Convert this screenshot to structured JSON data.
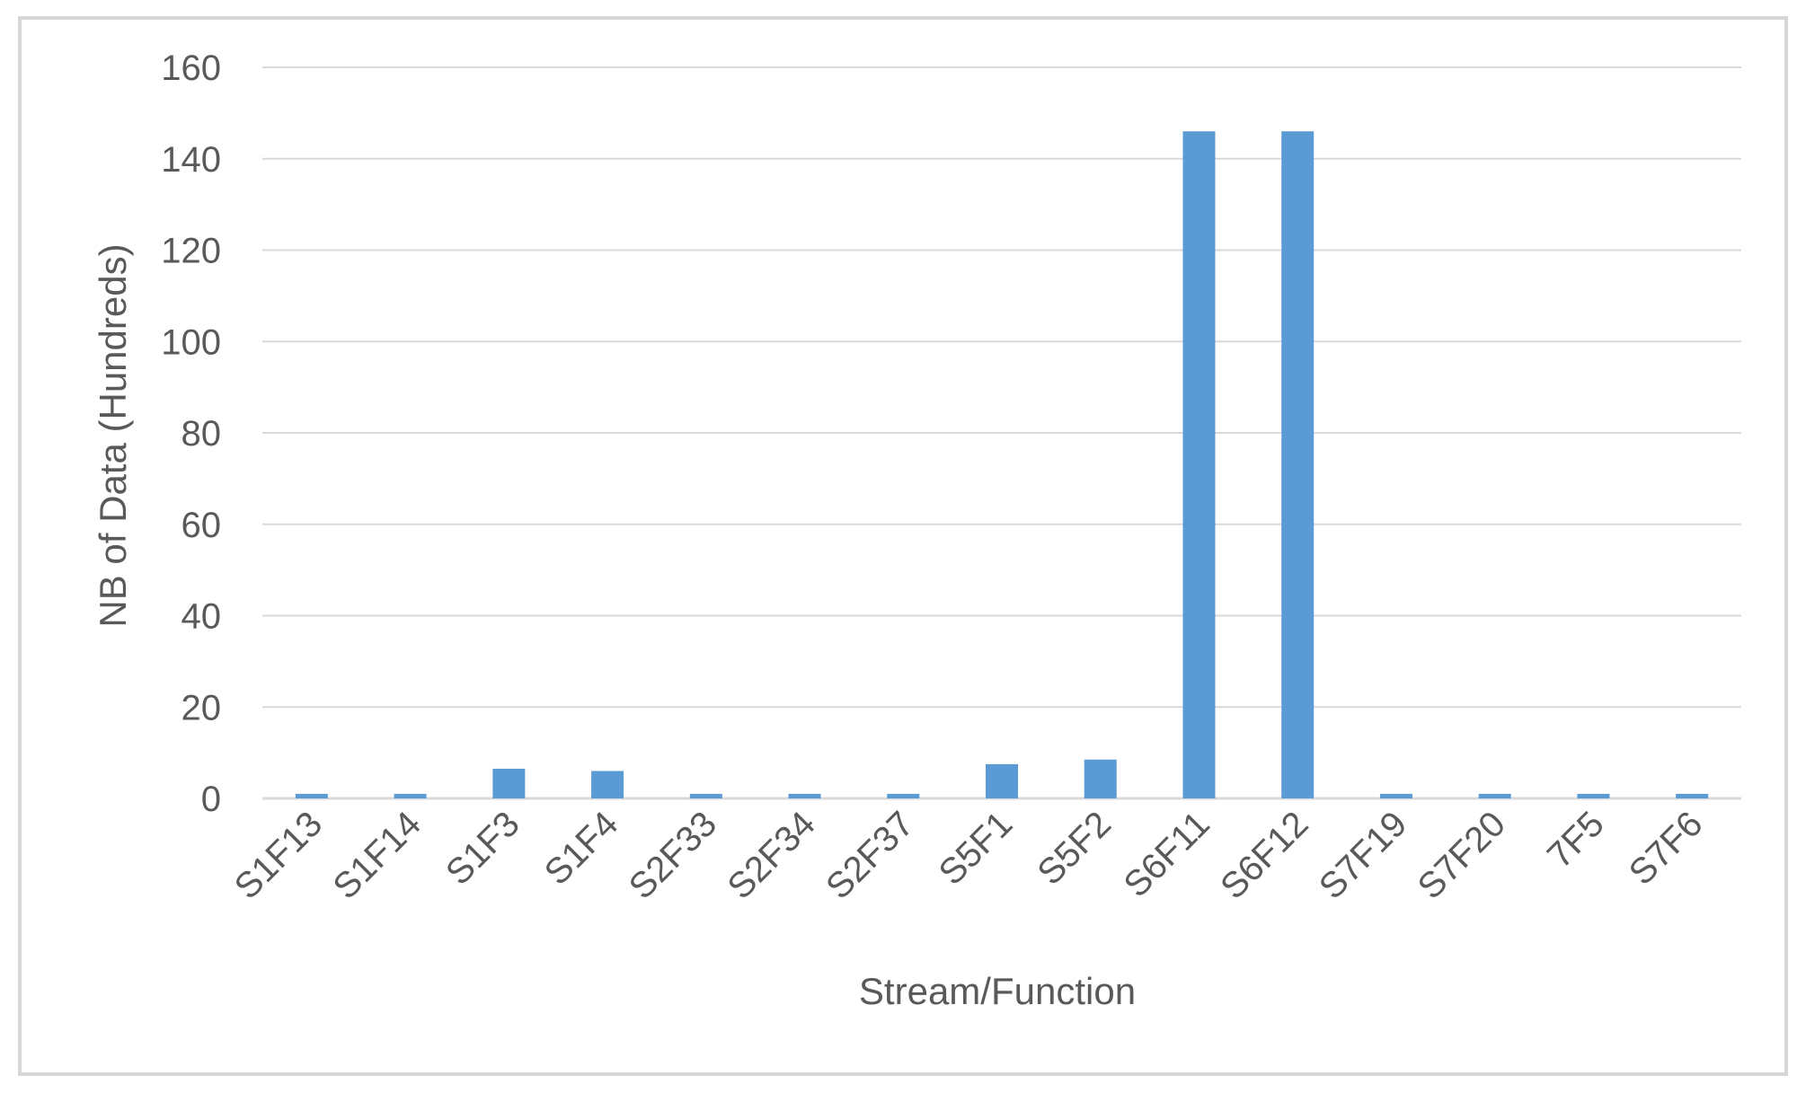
{
  "chart_data": {
    "type": "bar",
    "title": "",
    "xlabel": "Stream/Function",
    "ylabel": "NB of Data (Hundreds)",
    "ylim": [
      0,
      160
    ],
    "yticks": [
      0,
      20,
      40,
      60,
      80,
      100,
      120,
      140,
      160
    ],
    "grid": true,
    "legend": "none",
    "categories": [
      "S1F13",
      "S1F14",
      "S1F3",
      "S1F4",
      "S2F33",
      "S2F34",
      "S2F37",
      "S5F1",
      "S5F2",
      "S6F11",
      "S6F12",
      "S7F19",
      "S7F20",
      "7F5",
      "S7F6"
    ],
    "values": [
      1,
      1,
      6.5,
      6,
      1,
      1,
      1,
      7.5,
      8.5,
      146,
      146,
      1,
      1,
      1,
      1
    ],
    "colors": {
      "bar": "#5b9bd5",
      "grid": "#d9d9d9",
      "text": "#595959",
      "border": "#d6d6d6"
    }
  }
}
